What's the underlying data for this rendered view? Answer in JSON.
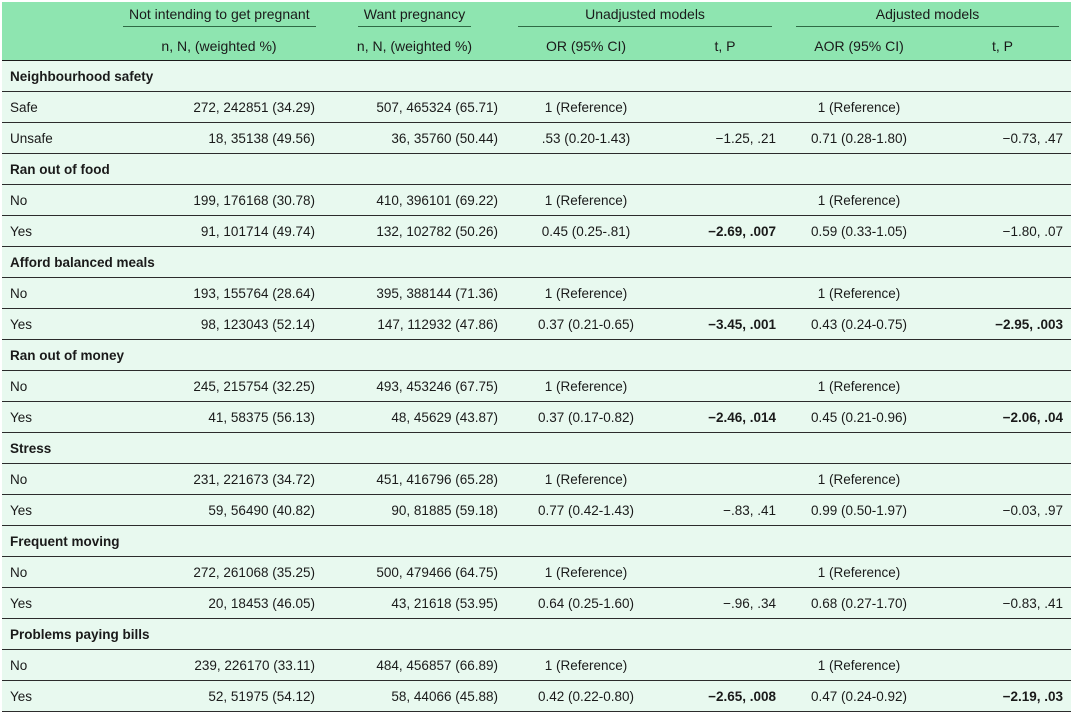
{
  "header": {
    "col1": "Not intending to get pregnant",
    "col2": "Want pregnancy",
    "unadjusted": "Unadjusted models",
    "adjusted": "Adjusted models",
    "sub1": "n, N, (weighted %)",
    "sub2": "n, N, (weighted %)",
    "sub3": "OR (95% CI)",
    "sub4": "t, P",
    "sub5": "AOR (95% CI)",
    "sub6": "t, P"
  },
  "sections": [
    {
      "title": "Neighbourhood safety",
      "rows": [
        {
          "label": "Safe",
          "not_intending": "272, 242851 (34.29)",
          "want": "507, 465324 (65.71)",
          "or": "1 (Reference)",
          "tp": "",
          "tp_bold": false,
          "aor": "1 (Reference)",
          "atp": "",
          "atp_bold": false
        },
        {
          "label": "Unsafe",
          "not_intending": "18, 35138 (49.56)",
          "want": "36, 35760 (50.44)",
          "or": ".53 (0.20-1.43)",
          "tp": "−1.25, .21",
          "tp_bold": false,
          "aor": "0.71 (0.28-1.80)",
          "atp": "−0.73, .47",
          "atp_bold": false
        }
      ]
    },
    {
      "title": "Ran out of food",
      "rows": [
        {
          "label": "No",
          "not_intending": "199, 176168 (30.78)",
          "want": "410, 396101 (69.22)",
          "or": "1 (Reference)",
          "tp": "",
          "tp_bold": false,
          "aor": "1 (Reference)",
          "atp": "",
          "atp_bold": false
        },
        {
          "label": "Yes",
          "not_intending": "91, 101714 (49.74)",
          "want": "132, 102782 (50.26)",
          "or": "0.45 (0.25-.81)",
          "tp": "−2.69, .007",
          "tp_bold": true,
          "aor": "0.59 (0.33-1.05)",
          "atp": "−1.80, .07",
          "atp_bold": false
        }
      ]
    },
    {
      "title": "Afford balanced meals",
      "rows": [
        {
          "label": "No",
          "not_intending": "193, 155764 (28.64)",
          "want": "395, 388144 (71.36)",
          "or": "1 (Reference)",
          "tp": "",
          "tp_bold": false,
          "aor": "1 (Reference)",
          "atp": "",
          "atp_bold": false
        },
        {
          "label": "Yes",
          "not_intending": "98, 123043 (52.14)",
          "want": "147, 112932 (47.86)",
          "or": "0.37 (0.21-0.65)",
          "tp": "−3.45, .001",
          "tp_bold": true,
          "aor": "0.43 (0.24-0.75)",
          "atp": "−2.95, .003",
          "atp_bold": true
        }
      ]
    },
    {
      "title": "Ran out of money",
      "rows": [
        {
          "label": "No",
          "not_intending": "245, 215754 (32.25)",
          "want": "493, 453246 (67.75)",
          "or": "1 (Reference)",
          "tp": "",
          "tp_bold": false,
          "aor": "1 (Reference)",
          "atp": "",
          "atp_bold": false
        },
        {
          "label": "Yes",
          "not_intending": "41, 58375 (56.13)",
          "want": "48, 45629 (43.87)",
          "or": "0.37 (0.17-0.82)",
          "tp": "−2.46, .014",
          "tp_bold": true,
          "aor": "0.45 (0.21-0.96)",
          "atp": "−2.06, .04",
          "atp_bold": true
        }
      ]
    },
    {
      "title": "Stress",
      "rows": [
        {
          "label": "No",
          "not_intending": "231, 221673 (34.72)",
          "want": "451, 416796 (65.28)",
          "or": "1 (Reference)",
          "tp": "",
          "tp_bold": false,
          "aor": "1 (Reference)",
          "atp": "",
          "atp_bold": false
        },
        {
          "label": "Yes",
          "not_intending": "59, 56490 (40.82)",
          "want": "90, 81885 (59.18)",
          "or": "0.77 (0.42-1.43)",
          "tp": "−.83, .41",
          "tp_bold": false,
          "aor": "0.99 (0.50-1.97)",
          "atp": "−0.03, .97",
          "atp_bold": false
        }
      ]
    },
    {
      "title": "Frequent moving",
      "rows": [
        {
          "label": "No",
          "not_intending": "272, 261068 (35.25)",
          "want": "500, 479466 (64.75)",
          "or": "1 (Reference)",
          "tp": "",
          "tp_bold": false,
          "aor": "1 (Reference)",
          "atp": "",
          "atp_bold": false
        },
        {
          "label": "Yes",
          "not_intending": "20, 18453 (46.05)",
          "want": "43, 21618 (53.95)",
          "or": "0.64 (0.25-1.60)",
          "tp": "−.96, .34",
          "tp_bold": false,
          "aor": "0.68 (0.27-1.70)",
          "atp": "−0.83, .41",
          "atp_bold": false
        }
      ]
    },
    {
      "title": "Problems paying bills",
      "rows": [
        {
          "label": "No",
          "not_intending": "239, 226170 (33.11)",
          "want": "484, 456857 (66.89)",
          "or": "1 (Reference)",
          "tp": "",
          "tp_bold": false,
          "aor": "1 (Reference)",
          "atp": "",
          "atp_bold": false
        },
        {
          "label": "Yes",
          "not_intending": "52, 51975 (54.12)",
          "want": "58, 44066 (45.88)",
          "or": "0.42 (0.22-0.80)",
          "tp": "−2.65, .008",
          "tp_bold": true,
          "aor": "0.47 (0.24-0.92)",
          "atp": "−2.19, .03",
          "atp_bold": true
        }
      ]
    }
  ]
}
